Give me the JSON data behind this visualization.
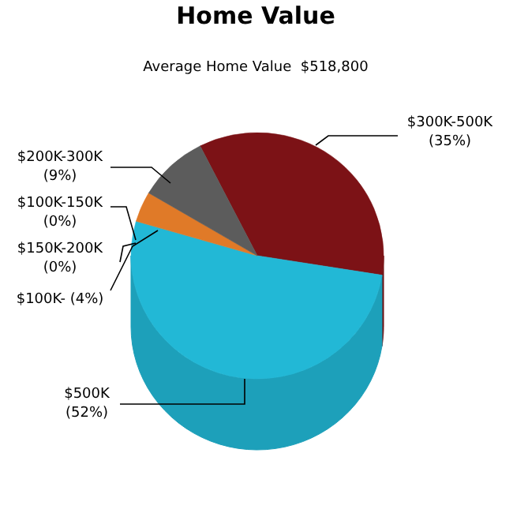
{
  "chart_data": {
    "type": "pie",
    "title": "Home Value",
    "subtitle": "Average Home Value  $518,800",
    "categories": [
      "$300K-500K",
      "$500K",
      "$100K-",
      "$150K-200K",
      "$100K-150K",
      "$200K-300K"
    ],
    "values": [
      35,
      52,
      4,
      0,
      0,
      9
    ],
    "value_labels": [
      "(35%)",
      "(52%)",
      "(4%)",
      "(0%)",
      "(0%)",
      "(9%)"
    ],
    "colors": [
      "#7c1216",
      "#22b8d6",
      "#e07a28",
      "#8a8a8a",
      "#b0b0b0",
      "#5c5c5c"
    ]
  }
}
